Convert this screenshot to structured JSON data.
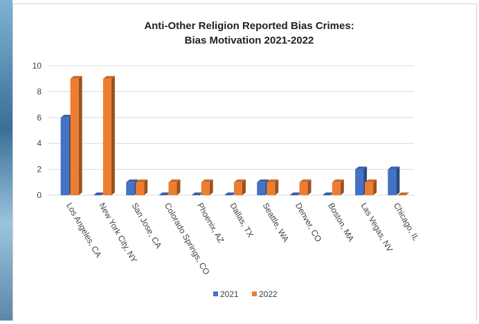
{
  "chart_data": {
    "type": "bar3d",
    "title": [
      "Anti-Other Religion Reported Bias Crimes:",
      "Bias Motivation 2021-2022"
    ],
    "categories": [
      "Los Angeles, CA",
      "New York City, NY",
      "San Jose, CA",
      "Colorado Springs, CO",
      "Phoenix, AZ",
      "Dallas, TX",
      "Seattle, WA",
      "Denver, CO",
      "Boston, MA",
      "Las Vegas, NV",
      "Chicago, IL"
    ],
    "series": [
      {
        "name": "2021",
        "color": "#4472c4",
        "values": [
          6,
          0,
          1,
          0,
          0,
          0,
          1,
          0,
          0,
          2,
          2
        ]
      },
      {
        "name": "2022",
        "color": "#ed7d31",
        "values": [
          9,
          9,
          1,
          1,
          1,
          1,
          1,
          1,
          1,
          1,
          0
        ]
      }
    ],
    "ylim": [
      0,
      10
    ],
    "yticks": [
      0,
      2,
      4,
      6,
      8,
      10
    ],
    "grid": true,
    "legend": "bottom"
  }
}
